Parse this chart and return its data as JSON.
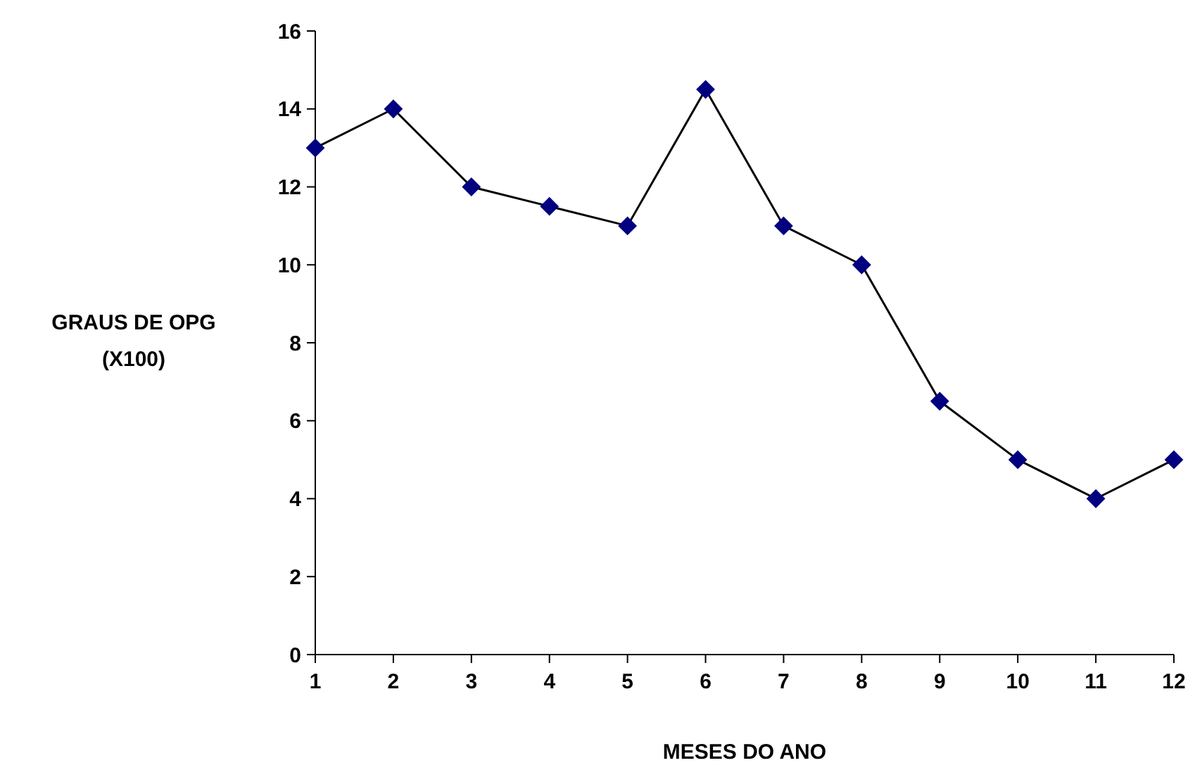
{
  "chart_data": {
    "type": "line",
    "xlabel": "MESES DO ANO",
    "ylabel": "GRAUS DE OPG\n(X100)",
    "categories": [
      "1",
      "2",
      "3",
      "4",
      "5",
      "6",
      "7",
      "8",
      "9",
      "10",
      "11",
      "12"
    ],
    "series": [
      {
        "color": "#000080",
        "values": [
          13,
          14,
          12,
          11.5,
          11,
          14.5,
          11,
          10,
          6.5,
          5,
          4,
          5
        ]
      }
    ],
    "ylim": [
      0,
      16
    ],
    "yticks": [
      0,
      2,
      4,
      6,
      8,
      10,
      12,
      14,
      16
    ],
    "grid": false,
    "marker": "diamond",
    "line_style": "solid"
  }
}
